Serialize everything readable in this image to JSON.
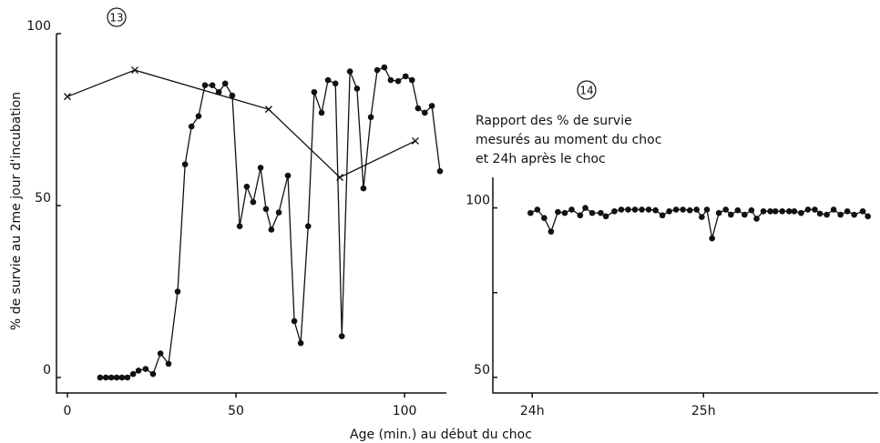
{
  "chart_data": [
    {
      "type": "line",
      "panel": "13",
      "xlabel": "Age (min.) au début du choc",
      "ylabel": "% de survie au 2me jour d'incubation",
      "xlim": [
        -3.24,
        112.4
      ],
      "xticks": [
        0,
        50,
        100
      ],
      "ylim": [
        -4.5,
        100
      ],
      "yticks": [
        0,
        50,
        100
      ],
      "series": [
        {
          "marker": "o",
          "color": "#111",
          "x": [
            9.7,
            11.4,
            13,
            14.6,
            16.2,
            17.8,
            19.5,
            21.1,
            23.2,
            25.4,
            27.6,
            30,
            32.7,
            34.9,
            36.8,
            38.9,
            40.8,
            43,
            44.9,
            46.8,
            48.9,
            51.1,
            53.2,
            55.1,
            57.3,
            58.9,
            60.5,
            62.7,
            65.4,
            67.3,
            69.2,
            71.4,
            73.2,
            75.4,
            77.3,
            79.5,
            81.4,
            83.8,
            85.9,
            87.8,
            90,
            91.9,
            94,
            95.9,
            98.1,
            100.3,
            102.2,
            104,
            106,
            108.1,
            110.5
          ],
          "values": [
            0,
            0,
            0,
            0,
            0,
            0,
            1,
            2,
            2.5,
            1,
            7,
            4,
            25,
            62,
            73,
            76,
            85,
            85,
            83,
            85.5,
            82,
            44,
            55.5,
            51,
            61,
            49,
            43,
            48,
            58.7,
            16.4,
            10,
            44,
            83,
            77,
            86.5,
            85.5,
            12,
            89,
            84,
            55,
            75.7,
            89.4,
            90.2,
            86.5,
            86.2,
            87.6,
            86.5,
            78.3,
            77,
            79,
            60
          ]
        },
        {
          "marker": "x",
          "color": "#111",
          "x": [
            0,
            20,
            59.7,
            80.8,
            103.2
          ],
          "values": [
            81.7,
            89.4,
            78,
            58.2,
            68.8
          ]
        }
      ]
    },
    {
      "type": "line",
      "panel": "14",
      "annotation": [
        "Rapport des % de survie",
        "mesurés au moment du choc",
        "et 24h après le choc"
      ],
      "xlim": [
        23.77,
        26.02
      ],
      "xticks": [
        {
          "value": 24,
          "label": "24h"
        },
        {
          "value": 25,
          "label": "25h"
        }
      ],
      "ylim": [
        45.4,
        109
      ],
      "yticks": [
        50,
        100
      ],
      "minor_yticks": [
        75
      ],
      "series": [
        {
          "marker": "o",
          "color": "#111",
          "x": [
            23.99,
            24.03,
            24.07,
            24.11,
            24.15,
            24.19,
            24.23,
            24.28,
            24.31,
            24.35,
            24.4,
            24.43,
            24.48,
            24.52,
            24.56,
            24.6,
            24.64,
            24.68,
            24.72,
            24.76,
            24.8,
            24.84,
            24.88,
            24.92,
            24.96,
            24.99,
            25.02,
            25.05,
            25.09,
            25.13,
            25.16,
            25.2,
            25.24,
            25.28,
            25.31,
            25.35,
            25.39,
            25.42,
            25.46,
            25.5,
            25.53,
            25.57,
            25.61,
            25.65,
            25.68,
            25.72,
            25.76,
            25.8,
            25.84,
            25.88,
            25.93,
            25.96
          ],
          "values": [
            98.5,
            99.5,
            97,
            93,
            98.8,
            98.5,
            99.5,
            97.8,
            100,
            98.5,
            98.5,
            97.5,
            99,
            99.5,
            99.5,
            99.5,
            99.5,
            99.5,
            99.3,
            97.8,
            99,
            99.5,
            99.5,
            99.3,
            99.5,
            97.3,
            99.5,
            91,
            98.5,
            99.5,
            98,
            99.3,
            98,
            99.3,
            96.8,
            99,
            99,
            99,
            99,
            99,
            99,
            98.5,
            99.5,
            99.5,
            98.3,
            98,
            99.5,
            98,
            99,
            98,
            99,
            97.5
          ]
        }
      ]
    }
  ]
}
